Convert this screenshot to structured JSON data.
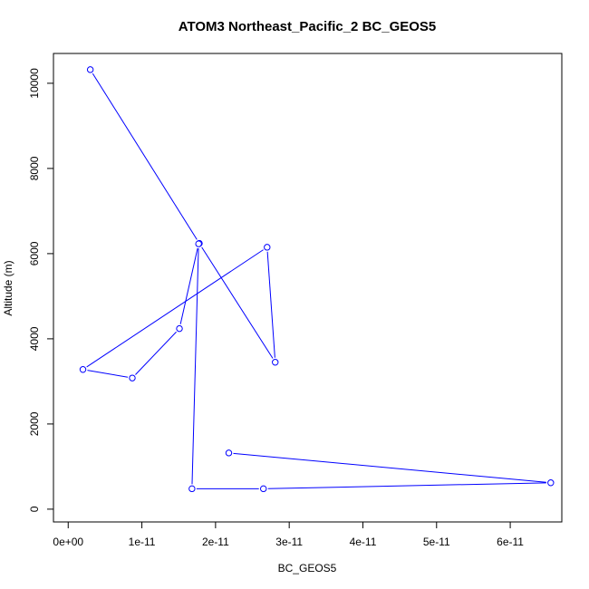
{
  "chart_data": {
    "type": "line",
    "title": "ATOM3 Northeast_Pacific_2 BC_GEOS5",
    "xlabel": "BC_GEOS5",
    "ylabel": "Altitude (m)",
    "xlim": [
      -2e-12,
      6.7e-11
    ],
    "ylim": [
      -300,
      10700
    ],
    "x_ticks": [
      {
        "value": 0,
        "label": "0e+00"
      },
      {
        "value": 1e-11,
        "label": "1e-11"
      },
      {
        "value": 2e-11,
        "label": "2e-11"
      },
      {
        "value": 3e-11,
        "label": "3e-11"
      },
      {
        "value": 4e-11,
        "label": "4e-11"
      },
      {
        "value": 5e-11,
        "label": "5e-11"
      },
      {
        "value": 6e-11,
        "label": "6e-11"
      }
    ],
    "y_ticks": [
      {
        "value": 0,
        "label": "0"
      },
      {
        "value": 2000,
        "label": "2000"
      },
      {
        "value": 4000,
        "label": "4000"
      },
      {
        "value": 6000,
        "label": "6000"
      },
      {
        "value": 8000,
        "label": "8000"
      },
      {
        "value": 10000,
        "label": "10000"
      }
    ],
    "color": "#0000ff",
    "grid": false,
    "series": [
      {
        "points": [
          {
            "x": 3e-12,
            "y": 10320
          },
          {
            "x": 1.78e-11,
            "y": 6240
          },
          {
            "x": 2.81e-11,
            "y": 3450
          },
          {
            "x": 2.7e-11,
            "y": 6150
          },
          {
            "x": 2e-12,
            "y": 3280
          },
          {
            "x": 8.7e-12,
            "y": 3080
          },
          {
            "x": 1.51e-11,
            "y": 4240
          },
          {
            "x": 1.77e-11,
            "y": 6230
          },
          {
            "x": 1.68e-11,
            "y": 480
          },
          {
            "x": 2.65e-11,
            "y": 480
          },
          {
            "x": 6.55e-11,
            "y": 620
          },
          {
            "x": 2.18e-11,
            "y": 1320
          }
        ]
      }
    ]
  }
}
